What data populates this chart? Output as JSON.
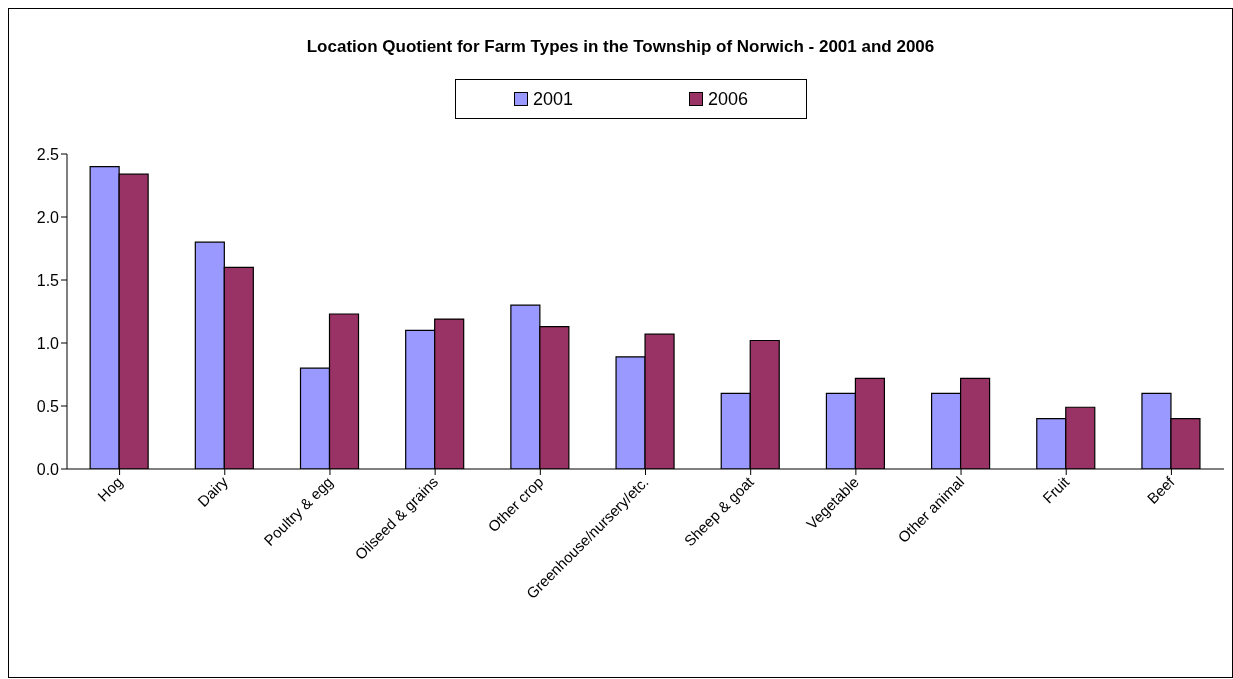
{
  "chart_data": {
    "type": "bar",
    "title": "Location Quotient for Farm Types in the Township of Norwich - 2001 and 2006",
    "categories": [
      "Hog",
      "Dairy",
      "Poultry & egg",
      "Oilseed & grains",
      "Other crop",
      "Greenhouse/nursery/etc.",
      "Sheep & goat",
      "Vegetable",
      "Other animal",
      "Fruit",
      "Beef"
    ],
    "series": [
      {
        "name": "2001",
        "color": "#9999ff",
        "values": [
          2.4,
          1.8,
          0.8,
          1.1,
          1.3,
          0.89,
          0.6,
          0.6,
          0.6,
          0.4,
          0.6
        ]
      },
      {
        "name": "2006",
        "color": "#993366",
        "values": [
          2.34,
          1.6,
          1.23,
          1.19,
          1.13,
          1.07,
          1.02,
          0.72,
          0.72,
          0.49,
          0.4
        ]
      }
    ],
    "ylim": [
      0,
      2.5
    ],
    "yticks": [
      {
        "value": 0,
        "label": "0.0"
      },
      {
        "value": 0.5,
        "label": "0.5"
      },
      {
        "value": 1,
        "label": "1.0"
      },
      {
        "value": 1.5,
        "label": "1.5"
      },
      {
        "value": 2,
        "label": "2.0"
      },
      {
        "value": 2.5,
        "label": "2.5"
      }
    ],
    "grid": false,
    "legend": "top"
  }
}
